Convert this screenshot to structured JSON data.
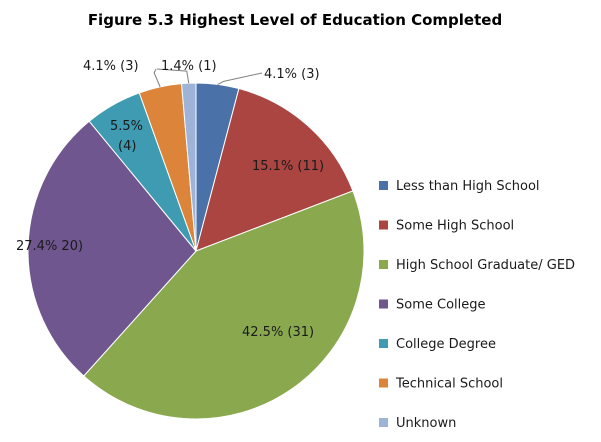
{
  "chart_data": {
    "type": "pie",
    "title": "Figure 5.3 Highest Level of Education Completed",
    "slices": [
      {
        "label": "Less than High School",
        "value": 3,
        "percent": 4.1,
        "data_label": "4.1% (3)",
        "color": "#4a72a8"
      },
      {
        "label": "Some High School",
        "value": 11,
        "percent": 15.1,
        "data_label": "15.1% (11)",
        "color": "#ab4542"
      },
      {
        "label": "High School Graduate/ GED",
        "value": 31,
        "percent": 42.5,
        "data_label": "42.5% (31)",
        "color": "#8aa94f"
      },
      {
        "label": "Some College",
        "value": 20,
        "percent": 27.4,
        "data_label": "27.4% 20)",
        "color": "#6f568f"
      },
      {
        "label": "College Degree",
        "value": 4,
        "percent": 5.5,
        "data_label": "5.5% (4)",
        "color": "#3f9bb1"
      },
      {
        "label": "Technical School",
        "value": 3,
        "percent": 4.1,
        "data_label": "4.1% (3)",
        "color": "#dc8439"
      },
      {
        "label": "Unknown",
        "value": 1,
        "percent": 1.4,
        "data_label": "1.4% (1)",
        "color": "#9db3d8"
      }
    ],
    "legend_position": "right",
    "start_angle": "top",
    "direction": "clockwise"
  }
}
